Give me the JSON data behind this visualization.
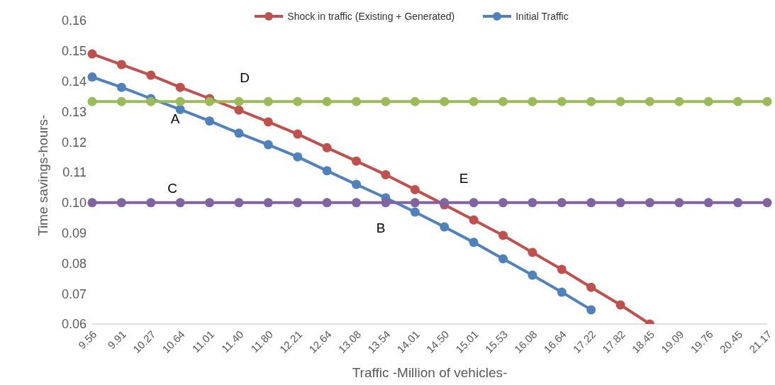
{
  "chart_data": {
    "type": "line",
    "xlabel": "Traffic -Million of vehicles-",
    "ylabel": "Time savings-hours-",
    "categories": [
      "9.56",
      "9.91",
      "10.27",
      "10.64",
      "11.01",
      "11.40",
      "11.80",
      "12.21",
      "12.64",
      "13.08",
      "13.54",
      "14.01",
      "14.50",
      "15.01",
      "15.53",
      "16.08",
      "16.64",
      "17.22",
      "17.82",
      "18.45",
      "19.09",
      "19.76",
      "20.45",
      "21.17"
    ],
    "series": [
      {
        "name": "Shock in traffic (Existing + Generated)",
        "color": "#c0504d",
        "values": [
          0.149,
          0.1455,
          0.142,
          0.138,
          0.1343,
          0.1305,
          0.1266,
          0.1226,
          0.1181,
          0.1137,
          0.1092,
          0.1043,
          0.0993,
          0.0943,
          0.0892,
          0.0836,
          0.078,
          0.0721,
          0.0663,
          0.06,
          null,
          null,
          null,
          null
        ]
      },
      {
        "name": "Initial Traffic",
        "color": "#4f81bd",
        "values": [
          0.1414,
          0.138,
          0.1343,
          0.1307,
          0.1269,
          0.1229,
          0.1191,
          0.1151,
          0.1105,
          0.106,
          0.1016,
          0.0969,
          0.092,
          0.0869,
          0.0815,
          0.0761,
          0.0705,
          0.0647,
          null,
          null,
          null,
          null,
          null,
          null
        ]
      },
      {
        "color": "#9bbb59",
        "values": [
          0.1333,
          0.1333,
          0.1333,
          0.1333,
          0.1333,
          0.1333,
          0.1333,
          0.1333,
          0.1333,
          0.1333,
          0.1333,
          0.1333,
          0.1333,
          0.1333,
          0.1333,
          0.1333,
          0.1333,
          0.1333,
          0.1333,
          0.1333,
          0.1333,
          0.1333,
          0.1333,
          0.1333
        ]
      },
      {
        "color": "#8064a2",
        "values": [
          0.1,
          0.1,
          0.1,
          0.1,
          0.1,
          0.1,
          0.1,
          0.1,
          0.1,
          0.1,
          0.1,
          0.1,
          0.1,
          0.1,
          0.1,
          0.1,
          0.1,
          0.1,
          0.1,
          0.1,
          0.1,
          0.1,
          0.1,
          0.1
        ]
      }
    ],
    "ylim": [
      0.06,
      0.16
    ],
    "yticks": [
      {
        "value": 0.06,
        "label": "0.06"
      },
      {
        "value": 0.07,
        "label": "0.07"
      },
      {
        "value": 0.08,
        "label": "0.08"
      },
      {
        "value": 0.09,
        "label": "0.09"
      },
      {
        "value": 0.1,
        "label": "0.10"
      },
      {
        "value": 0.11,
        "label": "0.11"
      },
      {
        "value": 0.12,
        "label": "0.12"
      },
      {
        "value": 0.13,
        "label": "0.13"
      },
      {
        "value": 0.14,
        "label": "0.14"
      },
      {
        "value": 0.15,
        "label": "0.15"
      },
      {
        "value": 0.16,
        "label": "0.16"
      }
    ],
    "annotations": [
      "A",
      "B",
      "C",
      "D",
      "E"
    ],
    "grid": false,
    "legend": "top",
    "marker": "circle",
    "line_style": "solid"
  }
}
